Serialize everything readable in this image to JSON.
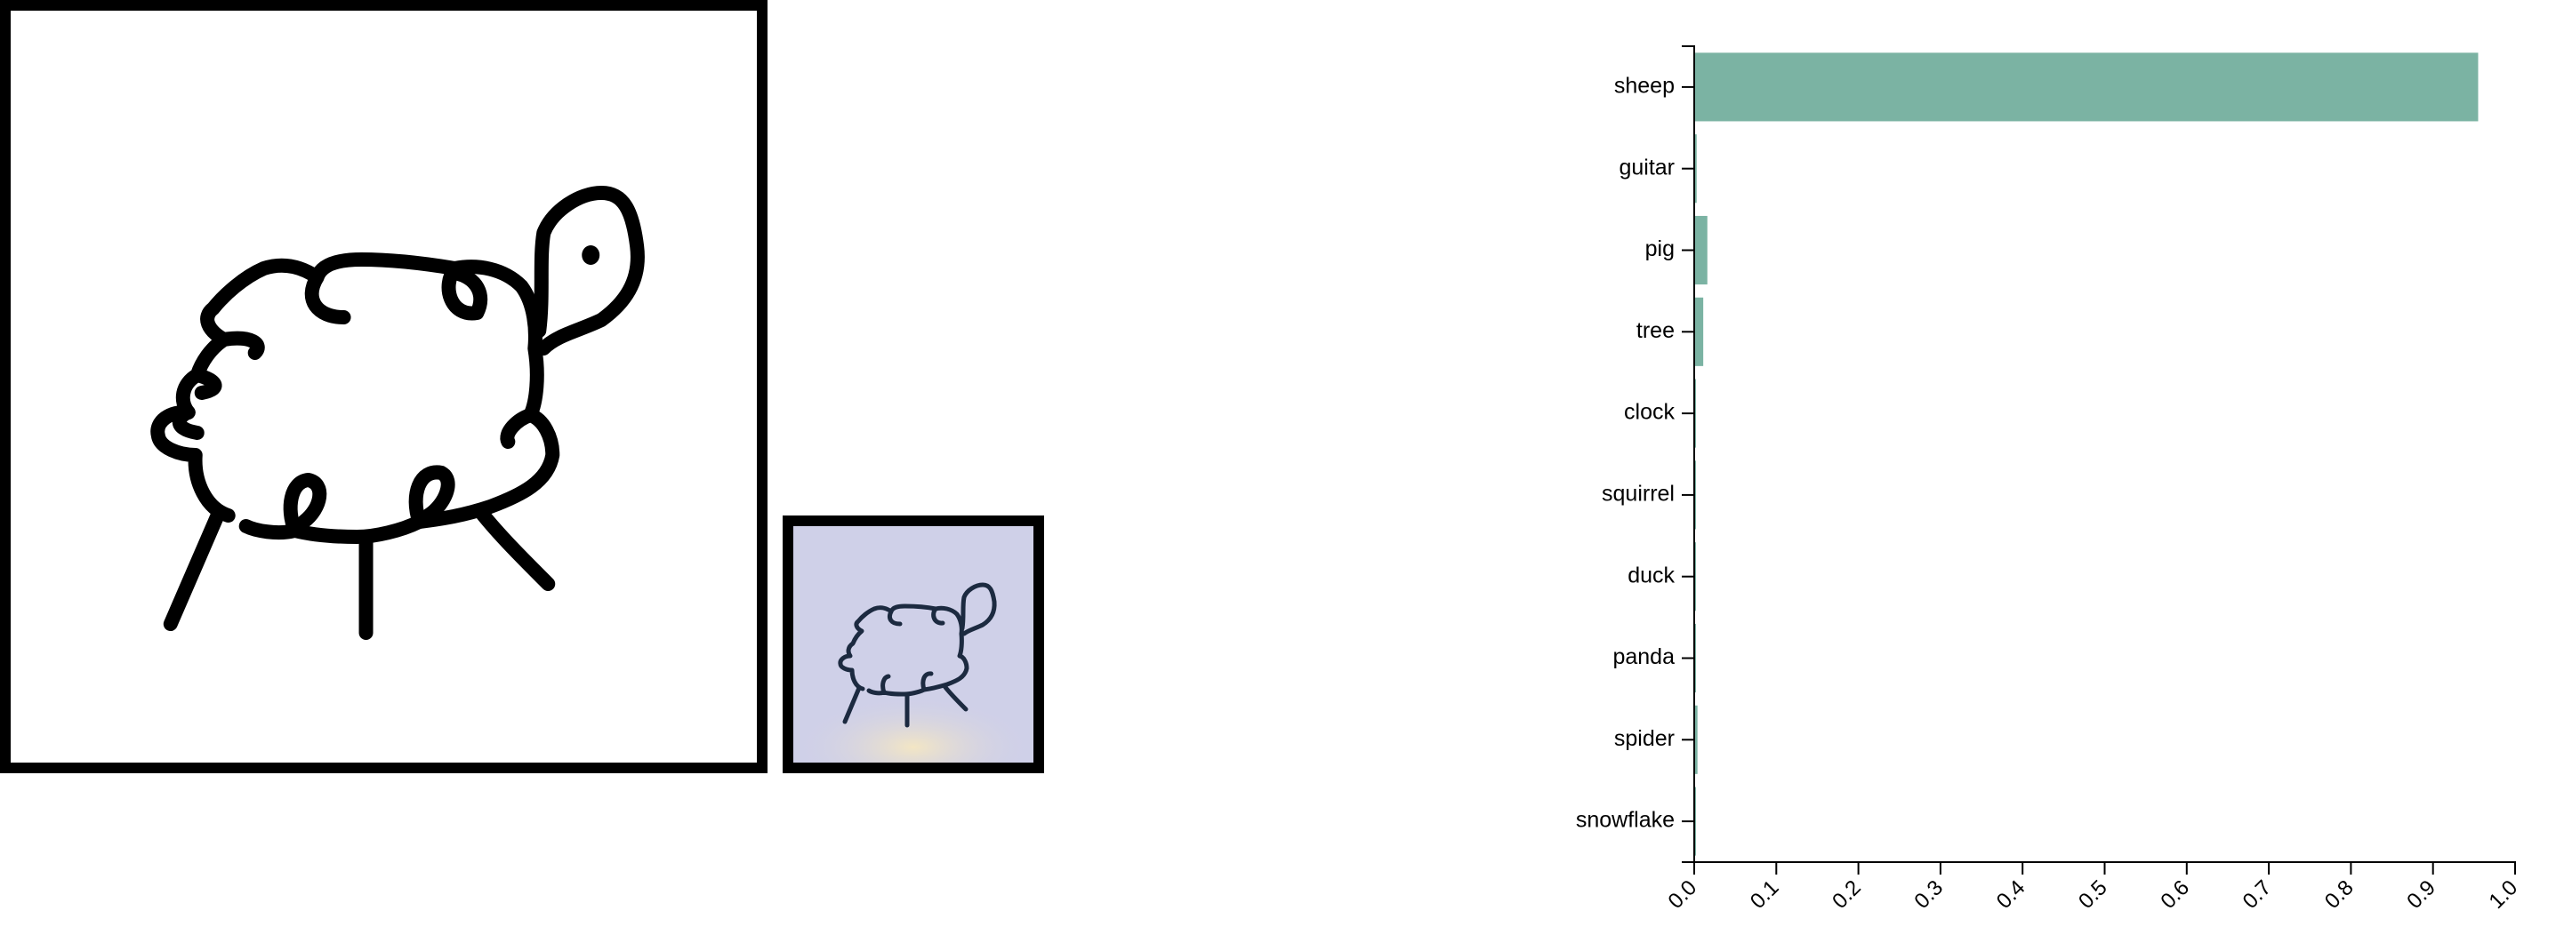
{
  "drawing_canvas": {
    "stroke_color": "#000000",
    "background": "#ffffff"
  },
  "preview": {
    "background": "#cfd0e8",
    "stroke_color": "#1c2a40"
  },
  "chart_data": {
    "type": "bar",
    "orientation": "horizontal",
    "categories": [
      "sheep",
      "guitar",
      "pig",
      "tree",
      "clock",
      "squirrel",
      "duck",
      "panda",
      "spider",
      "snowflake"
    ],
    "values": [
      0.955,
      0.003,
      0.016,
      0.011,
      0.002,
      0.001,
      0.001,
      0.002,
      0.004,
      0.002
    ],
    "xlim": [
      0,
      1.0
    ],
    "xticks": [
      "0.0",
      "0.1",
      "0.2",
      "0.3",
      "0.4",
      "0.5",
      "0.6",
      "0.7",
      "0.8",
      "0.9",
      "1.0"
    ],
    "bar_color": "#7bb3a3",
    "grid": false
  }
}
